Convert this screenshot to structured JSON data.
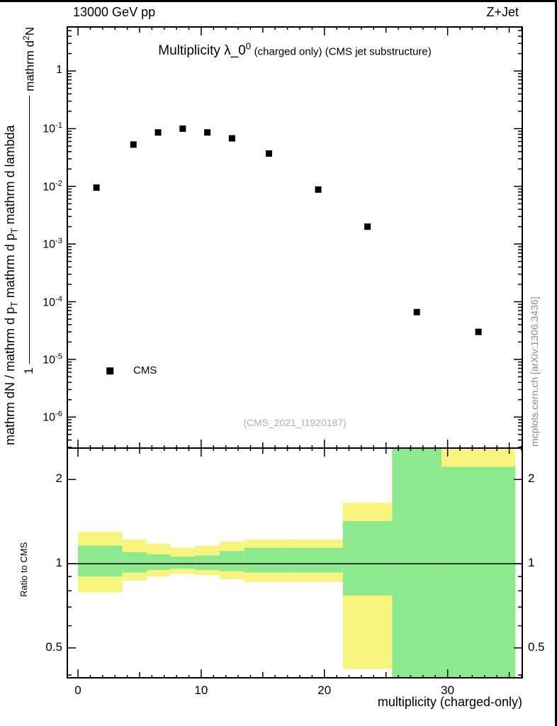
{
  "header": {
    "left": "13000 GeV pp",
    "right": "Z+Jet"
  },
  "meta": {
    "watermark": "(CMS_2021_I1920187)",
    "credit": "mcplots.cern.ch [arXiv:1306.3436]"
  },
  "chart_data": [
    {
      "id": "spectrum",
      "type": "scatter",
      "title_main": "Multiplicity λ_0^{0}",
      "title_rest": "(charged only) (CMS jet substructure)",
      "ylabel_prefix": "1",
      "ylabel_numerator": "mathrm d^{2}N",
      "ylabel_denominator": "mathrm dN / mathrm d p_{T} mathrm d p_{T} mathrm d lambda",
      "xscale": "linear",
      "yscale": "log",
      "xlim": [
        -0.865,
        36.06
      ],
      "ylim": [
        2.9e-07,
        5.8
      ],
      "series": [
        {
          "name": "CMS",
          "marker": "filled-square",
          "color": "#000000",
          "x": [
            1.5,
            4.5,
            6.5,
            8.5,
            10.5,
            12.5,
            15.5,
            19.5,
            23.5,
            27.5,
            32.5
          ],
          "y": [
            0.0095,
            0.053,
            0.086,
            0.1,
            0.086,
            0.068,
            0.037,
            0.0088,
            0.002,
            6.6e-05,
            3e-05
          ]
        }
      ],
      "yticks": [
        {
          "v": 1,
          "label": "1"
        },
        {
          "v": 0.1,
          "label": "10^{-1}"
        },
        {
          "v": 0.01,
          "label": "10^{-2}"
        },
        {
          "v": 0.001,
          "label": "10^{-3}"
        },
        {
          "v": 0.0001,
          "label": "10^{-4}"
        },
        {
          "v": 1e-05,
          "label": "10^{-5}"
        },
        {
          "v": 1e-06,
          "label": "10^{-6}"
        }
      ],
      "xticks_major": [
        0,
        10,
        20,
        30
      ],
      "legend": {
        "label": "CMS",
        "x": 2.6,
        "y": 6.3e-06
      }
    },
    {
      "id": "ratio",
      "type": "band",
      "ylabel": "Ratio to CMS",
      "xlabel": "multiplicity (charged-only)",
      "yscale": "log",
      "ylim": [
        0.391,
        2.59
      ],
      "refline": 1,
      "yticks": [
        {
          "v": 0.5,
          "label": "0.5"
        },
        {
          "v": 1,
          "label": "1"
        },
        {
          "v": 2,
          "label": "2"
        }
      ],
      "yticks_minor": [
        0.4,
        0.6,
        0.7,
        0.8,
        0.9
      ],
      "xticks": [
        {
          "v": 0,
          "label": "0"
        },
        {
          "v": 10,
          "label": "10"
        },
        {
          "v": 20,
          "label": "20"
        },
        {
          "v": 30,
          "label": "30"
        }
      ],
      "colors": {
        "outer": "#f8f57f",
        "inner": "#8de98d"
      },
      "bands": [
        {
          "xlo": 0.0,
          "xhi": 3.6,
          "yellow": [
            0.79,
            1.3
          ],
          "green": [
            0.9,
            1.16
          ]
        },
        {
          "xlo": 3.6,
          "xhi": 5.6,
          "yellow": [
            0.87,
            1.22
          ],
          "green": [
            0.93,
            1.1
          ]
        },
        {
          "xlo": 5.6,
          "xhi": 7.5,
          "yellow": [
            0.9,
            1.18
          ],
          "green": [
            0.95,
            1.08
          ]
        },
        {
          "xlo": 7.5,
          "xhi": 9.5,
          "yellow": [
            0.92,
            1.14
          ],
          "green": [
            0.96,
            1.06
          ]
        },
        {
          "xlo": 9.5,
          "xhi": 11.5,
          "yellow": [
            0.91,
            1.16
          ],
          "green": [
            0.95,
            1.07
          ]
        },
        {
          "xlo": 11.5,
          "xhi": 13.5,
          "yellow": [
            0.88,
            1.2
          ],
          "green": [
            0.94,
            1.11
          ]
        },
        {
          "xlo": 13.5,
          "xhi": 17.5,
          "yellow": [
            0.86,
            1.22
          ],
          "green": [
            0.93,
            1.14
          ]
        },
        {
          "xlo": 17.5,
          "xhi": 21.5,
          "yellow": [
            0.86,
            1.22
          ],
          "green": [
            0.93,
            1.14
          ]
        },
        {
          "xlo": 21.5,
          "xhi": 25.5,
          "yellow": [
            0.42,
            1.65
          ],
          "green": [
            0.77,
            1.42
          ]
        },
        {
          "xlo": 25.5,
          "xhi": 29.5,
          "yellow": [
            0.391,
            2.59
          ],
          "green": [
            0.391,
            2.59
          ]
        },
        {
          "xlo": 29.5,
          "xhi": 35.5,
          "yellow": [
            0.391,
            2.59
          ],
          "green": [
            0.391,
            2.22
          ]
        }
      ]
    }
  ]
}
